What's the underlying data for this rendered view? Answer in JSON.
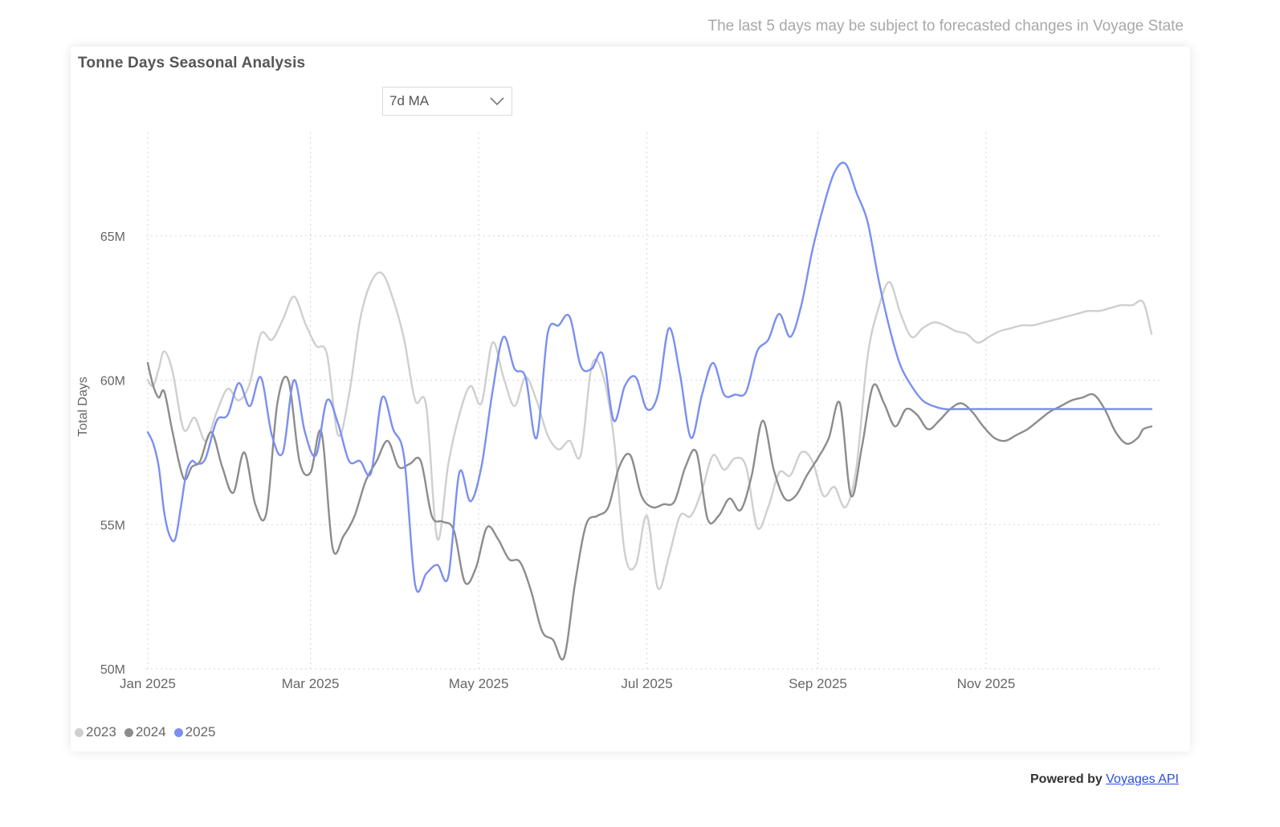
{
  "notice": "The last 5 days may be subject to forecasted changes in Voyage State",
  "footer": {
    "powered_by": "Powered by",
    "link_text": "Voyages API"
  },
  "dropdown": {
    "selected": "7d MA"
  },
  "chart_data": {
    "type": "line",
    "title": "Tonne Days Seasonal Analysis",
    "xlabel": "",
    "ylabel": "Total Days",
    "ylim": [
      50,
      68.5
    ],
    "yticks": [
      50,
      55,
      60,
      65
    ],
    "ytick_labels": [
      "50M",
      "55M",
      "60M",
      "65M"
    ],
    "xlim": [
      1,
      365
    ],
    "xticks": [
      1,
      60,
      121,
      182,
      244,
      305
    ],
    "xtick_labels": [
      "Jan 2025",
      "Mar 2025",
      "May 2025",
      "Jul 2025",
      "Sep 2025",
      "Nov 2025"
    ],
    "legend_position": "bottom-left",
    "grid": true,
    "series": [
      {
        "name": "2023",
        "color": "#cfcfcf",
        "x": [
          1,
          3,
          5,
          7,
          10,
          14,
          18,
          22,
          26,
          30,
          34,
          38,
          42,
          46,
          50,
          54,
          58,
          62,
          66,
          70,
          74,
          78,
          82,
          86,
          90,
          94,
          98,
          102,
          106,
          110,
          114,
          118,
          122,
          126,
          130,
          134,
          138,
          142,
          146,
          150,
          154,
          158,
          162,
          166,
          170,
          174,
          178,
          182,
          186,
          190,
          194,
          198,
          202,
          206,
          210,
          214,
          218,
          222,
          226,
          230,
          234,
          238,
          242,
          246,
          250,
          254,
          258,
          262,
          266,
          270,
          274,
          278,
          282,
          286,
          290,
          294,
          298,
          302,
          306,
          310,
          314,
          318,
          322,
          326,
          330,
          334,
          338,
          342,
          346,
          350,
          354,
          358,
          362,
          365
        ],
        "values": [
          60.0,
          59.8,
          60.4,
          61.0,
          60.3,
          58.3,
          58.7,
          57.9,
          58.9,
          59.7,
          59.3,
          59.9,
          61.6,
          61.4,
          62.1,
          62.9,
          62.0,
          61.2,
          60.9,
          58.1,
          59.5,
          62.1,
          63.4,
          63.7,
          62.8,
          61.4,
          59.3,
          59.1,
          54.5,
          57.1,
          58.8,
          59.8,
          59.2,
          61.3,
          60.1,
          59.1,
          60.1,
          59.3,
          58.1,
          57.6,
          57.9,
          57.4,
          60.5,
          60.2,
          58.0,
          54.0,
          53.6,
          55.3,
          52.8,
          53.9,
          55.3,
          55.3,
          56.2,
          57.4,
          56.9,
          57.3,
          57.0,
          54.9,
          55.6,
          56.8,
          56.7,
          57.5,
          57.2,
          56.0,
          56.3,
          55.6,
          57.0,
          60.8,
          62.5,
          63.4,
          62.3,
          61.5,
          61.8,
          62.0,
          61.9,
          61.7,
          61.6,
          61.3,
          61.5,
          61.7,
          61.8,
          61.9,
          61.9,
          62.0,
          62.1,
          62.2,
          62.3,
          62.4,
          62.4,
          62.5,
          62.6,
          62.6,
          62.7,
          61.6
        ]
      },
      {
        "name": "2024",
        "color": "#8c8c8c",
        "x": [
          1,
          3,
          5,
          7,
          10,
          14,
          17,
          20,
          24,
          28,
          32,
          36,
          40,
          44,
          48,
          52,
          56,
          60,
          64,
          68,
          72,
          76,
          80,
          84,
          88,
          92,
          96,
          100,
          104,
          108,
          112,
          116,
          120,
          124,
          128,
          132,
          136,
          140,
          144,
          148,
          152,
          156,
          160,
          164,
          168,
          172,
          176,
          180,
          184,
          188,
          192,
          196,
          200,
          204,
          208,
          212,
          216,
          220,
          224,
          228,
          232,
          236,
          240,
          244,
          248,
          252,
          256,
          260,
          264,
          268,
          272,
          276,
          280,
          284,
          288,
          292,
          296,
          300,
          304,
          308,
          312,
          316,
          320,
          324,
          328,
          332,
          336,
          340,
          344,
          348,
          352,
          356,
          360,
          362,
          365
        ],
        "values": [
          60.6,
          59.8,
          59.4,
          59.6,
          58.2,
          56.6,
          57.0,
          57.2,
          58.2,
          57.0,
          56.1,
          57.5,
          55.7,
          55.4,
          59.2,
          60.0,
          57.2,
          56.8,
          58.2,
          54.2,
          54.6,
          55.3,
          56.5,
          57.2,
          57.9,
          57.0,
          57.1,
          57.2,
          55.3,
          55.1,
          54.8,
          53.0,
          53.5,
          54.9,
          54.5,
          53.8,
          53.7,
          52.7,
          51.3,
          51.0,
          50.4,
          53.0,
          55.0,
          55.3,
          55.6,
          57.0,
          57.4,
          56.0,
          55.6,
          55.7,
          55.8,
          57.0,
          57.5,
          55.2,
          55.3,
          55.9,
          55.5,
          56.7,
          58.6,
          56.9,
          55.9,
          56.0,
          56.7,
          57.3,
          58.0,
          59.2,
          56.0,
          57.7,
          59.8,
          59.2,
          58.4,
          59.0,
          58.8,
          58.3,
          58.6,
          59.0,
          59.2,
          58.9,
          58.4,
          58.0,
          57.9,
          58.1,
          58.3,
          58.6,
          58.9,
          59.1,
          59.3,
          59.4,
          59.5,
          59.0,
          58.2,
          57.8,
          58.0,
          58.3,
          58.4
        ]
      },
      {
        "name": "2025",
        "color": "#7b8ff0",
        "x": [
          1,
          3,
          5,
          7,
          9,
          11,
          13,
          15,
          17,
          19,
          22,
          26,
          30,
          34,
          38,
          42,
          46,
          50,
          54,
          58,
          62,
          66,
          70,
          74,
          78,
          82,
          86,
          90,
          94,
          98,
          102,
          106,
          110,
          114,
          118,
          122,
          126,
          130,
          134,
          138,
          142,
          146,
          150,
          154,
          158,
          162,
          166,
          170,
          174,
          178,
          182,
          186,
          190,
          194,
          198,
          202,
          206,
          210,
          214,
          218,
          222,
          226,
          230,
          234,
          238,
          242,
          246,
          250,
          254,
          258,
          262,
          266,
          270,
          274,
          278,
          282,
          286,
          290,
          294,
          298,
          302,
          306,
          310,
          314,
          318,
          322,
          326,
          330,
          334,
          338,
          342,
          346,
          350,
          354,
          358,
          362,
          365
        ],
        "values": [
          58.2,
          57.8,
          57.0,
          55.4,
          54.6,
          54.5,
          55.6,
          56.8,
          57.2,
          57.1,
          57.3,
          58.6,
          58.8,
          59.9,
          59.1,
          60.1,
          58.1,
          57.5,
          60.0,
          58.2,
          57.4,
          59.3,
          58.5,
          57.2,
          57.2,
          56.8,
          59.4,
          58.3,
          57.3,
          52.9,
          53.3,
          53.6,
          53.2,
          56.8,
          55.8,
          57.0,
          59.6,
          61.5,
          60.4,
          60.1,
          58.0,
          61.6,
          61.9,
          62.2,
          60.5,
          60.4,
          60.9,
          58.6,
          59.8,
          60.1,
          59.0,
          59.5,
          61.8,
          60.2,
          58.0,
          59.5,
          60.6,
          59.5,
          59.5,
          59.6,
          61.0,
          61.4,
          62.3,
          61.5,
          62.6,
          64.5,
          66.0,
          67.2,
          67.5,
          66.5,
          65.5,
          63.5,
          61.8,
          60.5,
          59.8,
          59.3,
          59.1,
          59.0,
          59.0,
          59.0,
          59.0,
          59.0,
          59.0,
          59.0,
          59.0,
          59.0,
          59.0,
          59.0,
          59.0,
          59.0,
          59.0,
          59.0,
          59.0,
          59.0,
          59.0,
          59.0,
          59.0
        ]
      }
    ]
  }
}
